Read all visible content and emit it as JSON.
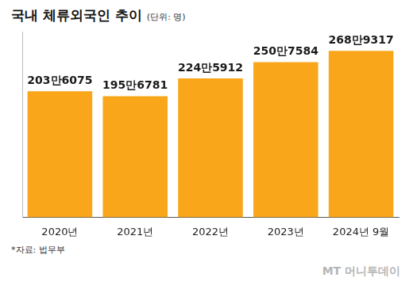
{
  "chart_data": {
    "type": "bar",
    "title": "국내 체류외국인 추이",
    "subtitle": "(단위: 명)",
    "categories": [
      "2020년",
      "2021년",
      "2022년",
      "2023년",
      "2024년 9월"
    ],
    "values": [
      2036075,
      1956781,
      2245912,
      2507584,
      2689317
    ],
    "value_labels": [
      "203만6075",
      "195만6781",
      "224만5912",
      "250만7584",
      "268만9317"
    ],
    "color": "#f9a61a",
    "ylim": [
      0,
      3000000
    ],
    "grid": false,
    "data_labels": true,
    "tick_labels": "x",
    "annotations": [
      "*자료: 법무부",
      "MT 머니투데이"
    ]
  }
}
